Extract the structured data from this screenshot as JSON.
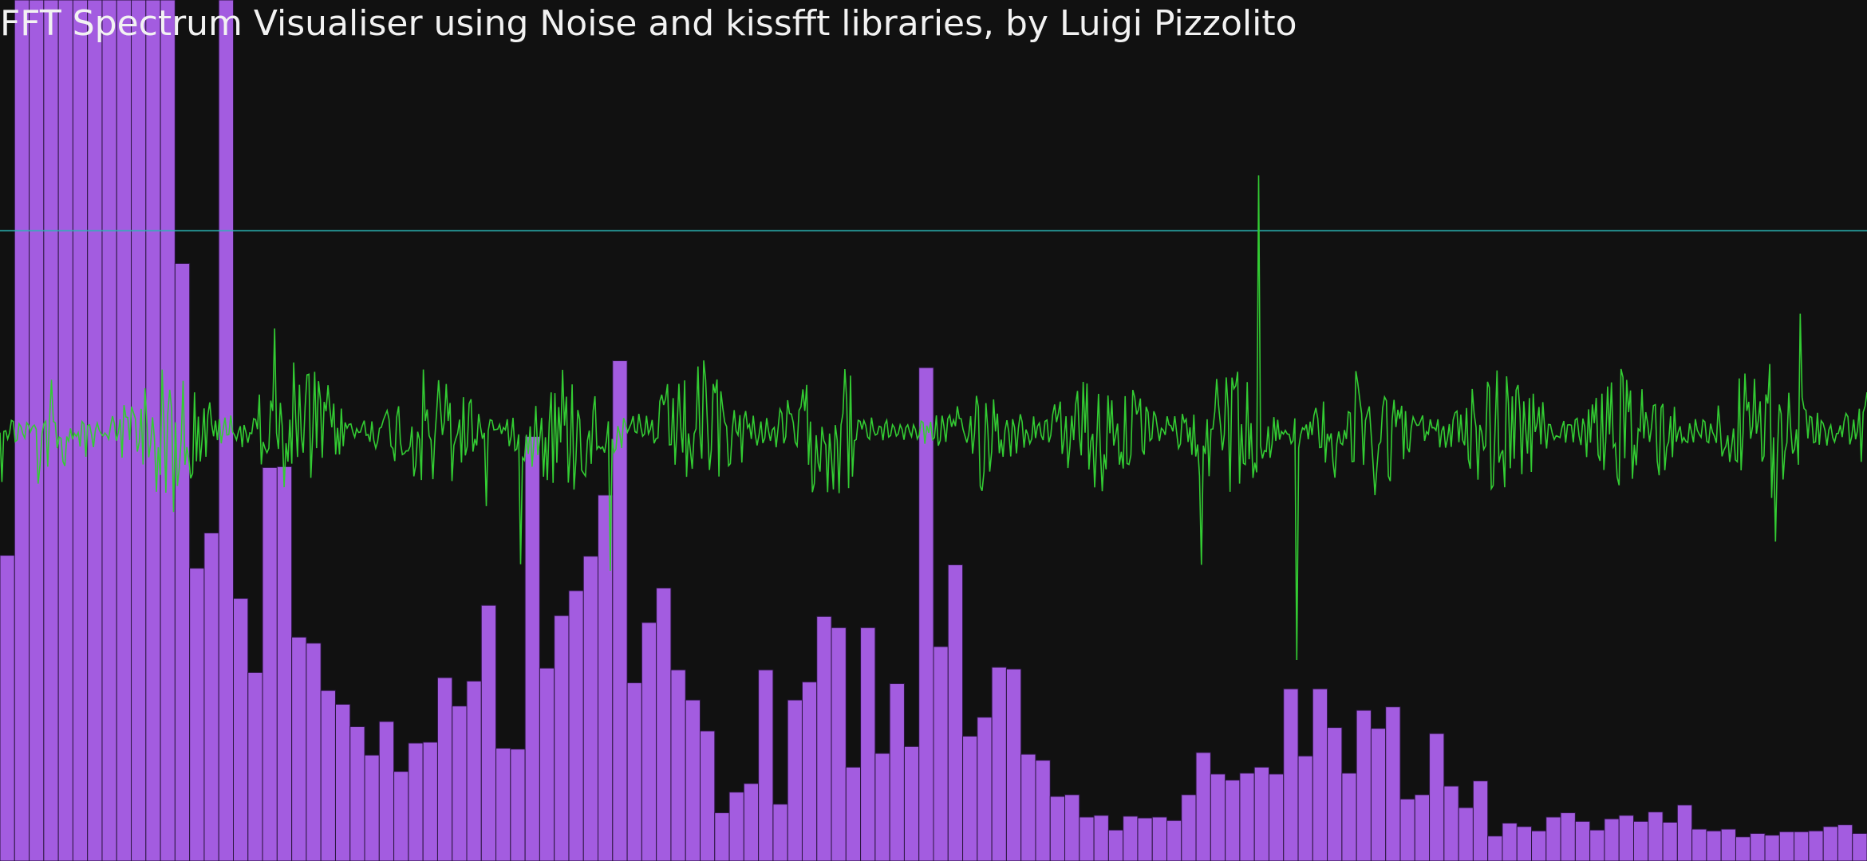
{
  "window": {
    "background": "#111111"
  },
  "title": "FFT Spectrum Visualiser using Noise and kissfft libraries, by Luigi Pizzolito",
  "colors": {
    "bar_fill": "#a35ce0",
    "bar_stroke": "#2b1640",
    "waveform": "#33cc33",
    "threshold_line": "#2ab3b3",
    "title_text": "#f2f2f2"
  },
  "chart_data": [
    {
      "type": "bar",
      "name": "spectrum",
      "ylim": [
        0,
        1
      ],
      "values": [
        0.355,
        1.0,
        1.0,
        1.0,
        1.0,
        1.0,
        1.0,
        1.0,
        1.0,
        1.0,
        1.0,
        1.0,
        0.694,
        0.34,
        0.381,
        1.0,
        0.305,
        0.219,
        0.457,
        0.458,
        0.26,
        0.253,
        0.198,
        0.182,
        0.156,
        0.123,
        0.162,
        0.104,
        0.137,
        0.138,
        0.213,
        0.18,
        0.209,
        0.297,
        0.131,
        0.13,
        0.493,
        0.224,
        0.285,
        0.314,
        0.354,
        0.425,
        0.581,
        0.207,
        0.277,
        0.317,
        0.222,
        0.187,
        0.151,
        0.056,
        0.08,
        0.09,
        0.222,
        0.066,
        0.187,
        0.208,
        0.284,
        0.271,
        0.109,
        0.271,
        0.125,
        0.206,
        0.133,
        0.573,
        0.249,
        0.344,
        0.145,
        0.167,
        0.225,
        0.223,
        0.124,
        0.117,
        0.075,
        0.077,
        0.051,
        0.053,
        0.036,
        0.052,
        0.05,
        0.051,
        0.047,
        0.077,
        0.126,
        0.101,
        0.094,
        0.102,
        0.109,
        0.101,
        0.2,
        0.122,
        0.2,
        0.155,
        0.102,
        0.175,
        0.154,
        0.179,
        0.072,
        0.077,
        0.148,
        0.087,
        0.062,
        0.093,
        0.029,
        0.044,
        0.04,
        0.035,
        0.051,
        0.056,
        0.046,
        0.036,
        0.049,
        0.053,
        0.046,
        0.057,
        0.045,
        0.065,
        0.037,
        0.035,
        0.037,
        0.028,
        0.032,
        0.03,
        0.034,
        0.034,
        0.035,
        0.04,
        0.042,
        0.032
      ]
    },
    {
      "type": "line",
      "name": "waveform",
      "ylim": [
        -1,
        1
      ],
      "samples": 980
    },
    {
      "type": "line",
      "name": "threshold",
      "y": 0.732
    }
  ]
}
